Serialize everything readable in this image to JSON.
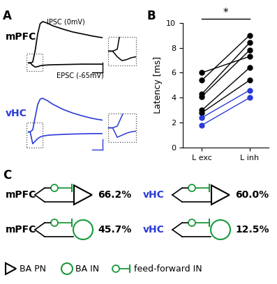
{
  "panel_labels": [
    "A",
    "B",
    "C"
  ],
  "traces": {
    "x": [
      0,
      1,
      2,
      3,
      4,
      5,
      6,
      8,
      10,
      14,
      18,
      22,
      26,
      30
    ],
    "annotations": {
      "ipsc": "IPSC (0mV)",
      "epsc": "EPSC (-65mV)"
    },
    "regions": [
      {
        "name": "mPFC",
        "color": "#000000",
        "ipsc": [
          0,
          0,
          0.2,
          3,
          7,
          9.5,
          10,
          9.6,
          9,
          8.2,
          7.5,
          7,
          6.5,
          6.1
        ],
        "epsc": [
          0,
          0,
          -0.6,
          -1.0,
          -0.9,
          -0.7,
          -0.6,
          -0.5,
          -0.45,
          -0.4,
          -0.35,
          -0.3,
          -0.3,
          -0.3
        ]
      },
      {
        "name": "vHC",
        "color": "#2b3bd6",
        "ipsc": [
          0,
          0,
          0.5,
          3.5,
          6.5,
          7.8,
          8,
          7.4,
          6.6,
          5.4,
          4.5,
          3.8,
          3.2,
          2.8
        ],
        "epsc": [
          0,
          0,
          -2.8,
          -2.2,
          -1.6,
          -1.2,
          -1.0,
          -0.8,
          -0.7,
          -0.6,
          -0.5,
          -0.45,
          -0.4,
          -0.4
        ]
      }
    ]
  },
  "chart_data": {
    "type": "line",
    "ylabel": "Latency [ms]",
    "categories": [
      "L exc",
      "L inh"
    ],
    "ylim": [
      0,
      10
    ],
    "yticks": [
      0,
      2,
      4,
      6,
      8,
      10
    ],
    "marker": "circle",
    "annotation": "*",
    "series": [
      {
        "color": "#000000",
        "values": [
          6.0,
          7.3
        ]
      },
      {
        "color": "#000000",
        "values": [
          5.4,
          9.0
        ]
      },
      {
        "color": "#000000",
        "values": [
          4.3,
          8.4
        ]
      },
      {
        "color": "#000000",
        "values": [
          4.1,
          7.8
        ]
      },
      {
        "color": "#000000",
        "values": [
          3.0,
          6.4
        ]
      },
      {
        "color": "#000000",
        "values": [
          2.8,
          5.4
        ]
      },
      {
        "color": "#2b3bd6",
        "values": [
          2.4,
          4.6
        ]
      },
      {
        "color": "#2b3bd6",
        "values": [
          1.8,
          4.0
        ]
      }
    ]
  },
  "schematic": {
    "colors": {
      "PN": "#000000",
      "IN": "#1a9a3a"
    },
    "rows": [
      {
        "source": "mPFC",
        "source_color": "#000000",
        "target": "PN",
        "value": 66.2,
        "label": "66.2%"
      },
      {
        "source": "vHC",
        "source_color": "#2b3bd6",
        "target": "PN",
        "value": 60.0,
        "label": "60.0%"
      },
      {
        "source": "mPFC",
        "source_color": "#000000",
        "target": "IN",
        "value": 45.7,
        "label": "45.7%"
      },
      {
        "source": "vHC",
        "source_color": "#2b3bd6",
        "target": "IN",
        "value": 12.5,
        "label": "12.5%"
      }
    ],
    "legend": [
      {
        "symbol": "PN",
        "label": "BA PN"
      },
      {
        "symbol": "IN",
        "label": "BA IN"
      },
      {
        "symbol": "feed-forward",
        "label": "feed-forward IN"
      }
    ]
  }
}
